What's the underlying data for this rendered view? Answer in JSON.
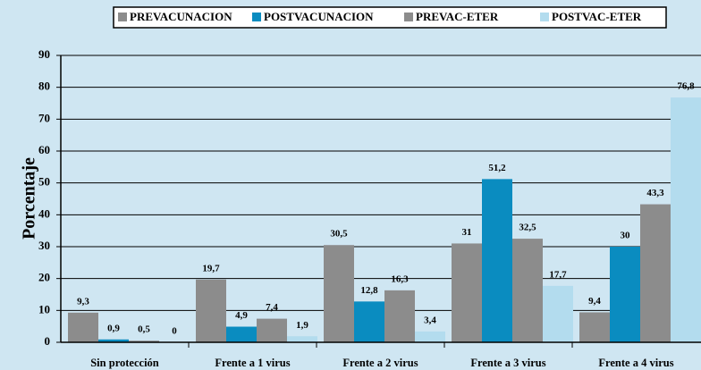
{
  "chart_data": {
    "type": "bar",
    "y_label": "Porcentaje",
    "categories": [
      "Sin protección",
      "Frente a 1 virus",
      "Frente a 2 virus",
      "Frente a 3 virus",
      "Frente a 4 virus"
    ],
    "series": [
      {
        "name": "PREVACUNACION",
        "color": "#8c8c8c",
        "values": [
          9.3,
          19.7,
          30.5,
          31,
          9.4
        ],
        "value_labels": [
          "9,3",
          "19,7",
          "30,5",
          "31",
          "9,4"
        ]
      },
      {
        "name": "POSTVACUNACION",
        "color": "#0a8cc0",
        "values": [
          0.9,
          4.9,
          12.8,
          51.2,
          30
        ],
        "value_labels": [
          "0,9",
          "4,9",
          "12,8",
          "51,2",
          "30"
        ]
      },
      {
        "name": "PREVAC-ETER",
        "color": "#8c8c8c",
        "values": [
          0.5,
          7.4,
          16.3,
          32.5,
          43.3
        ],
        "value_labels": [
          "0,5",
          "7,4",
          "16,3",
          "32,5",
          "43,3"
        ]
      },
      {
        "name": "POSTVAC-ETER",
        "color": "#b3dcee",
        "values": [
          0,
          1.9,
          3.4,
          17.7,
          76.8
        ],
        "value_labels": [
          "0",
          "1,9",
          "3,4",
          "17,7",
          "76,8"
        ]
      }
    ],
    "ylim": [
      0,
      90
    ],
    "yticks": [
      0,
      10,
      20,
      30,
      40,
      50,
      60,
      70,
      80,
      90
    ],
    "grid": true
  }
}
